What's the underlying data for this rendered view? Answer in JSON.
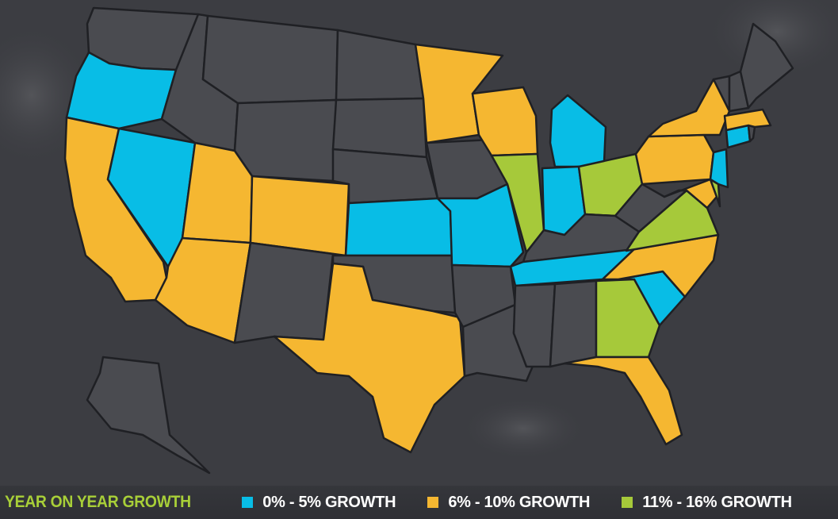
{
  "legend": {
    "title": "YEAR ON YEAR GROWTH",
    "items": [
      {
        "label": "0% - 5% GROWTH",
        "color": "#08bde6"
      },
      {
        "label": "6% - 10% GROWTH",
        "color": "#f5b731"
      },
      {
        "label": "11% - 16% GROWTH",
        "color": "#a6c93a"
      }
    ]
  },
  "colors": {
    "background": "#3c3d42",
    "no_data": "#4a4b50",
    "border": "#1f2024"
  },
  "states": {
    "WA": "none",
    "OR": "0-5",
    "CA": "6-10",
    "NV": "0-5",
    "ID": "none",
    "MT": "none",
    "WY": "none",
    "UT": "6-10",
    "AZ": "6-10",
    "CO": "6-10",
    "NM": "none",
    "ND": "none",
    "SD": "none",
    "NE": "none",
    "KS": "0-5",
    "OK": "none",
    "TX": "6-10",
    "MN": "6-10",
    "IA": "none",
    "MO": "0-5",
    "AR": "none",
    "LA": "none",
    "WI": "6-10",
    "IL": "11-16",
    "MI": "0-5",
    "IN": "0-5",
    "OH": "11-16",
    "KY": "none",
    "TN": "0-5",
    "MS": "none",
    "AL": "none",
    "GA": "11-16",
    "FL": "6-10",
    "SC": "0-5",
    "NC": "6-10",
    "VA": "11-16",
    "WV": "none",
    "PA": "6-10",
    "NY": "6-10",
    "MD": "6-10",
    "DE": "11-16",
    "NJ": "0-5",
    "CT": "0-5",
    "RI": "none",
    "MA": "6-10",
    "VT": "none",
    "NH": "none",
    "ME": "none",
    "AK": "none"
  }
}
